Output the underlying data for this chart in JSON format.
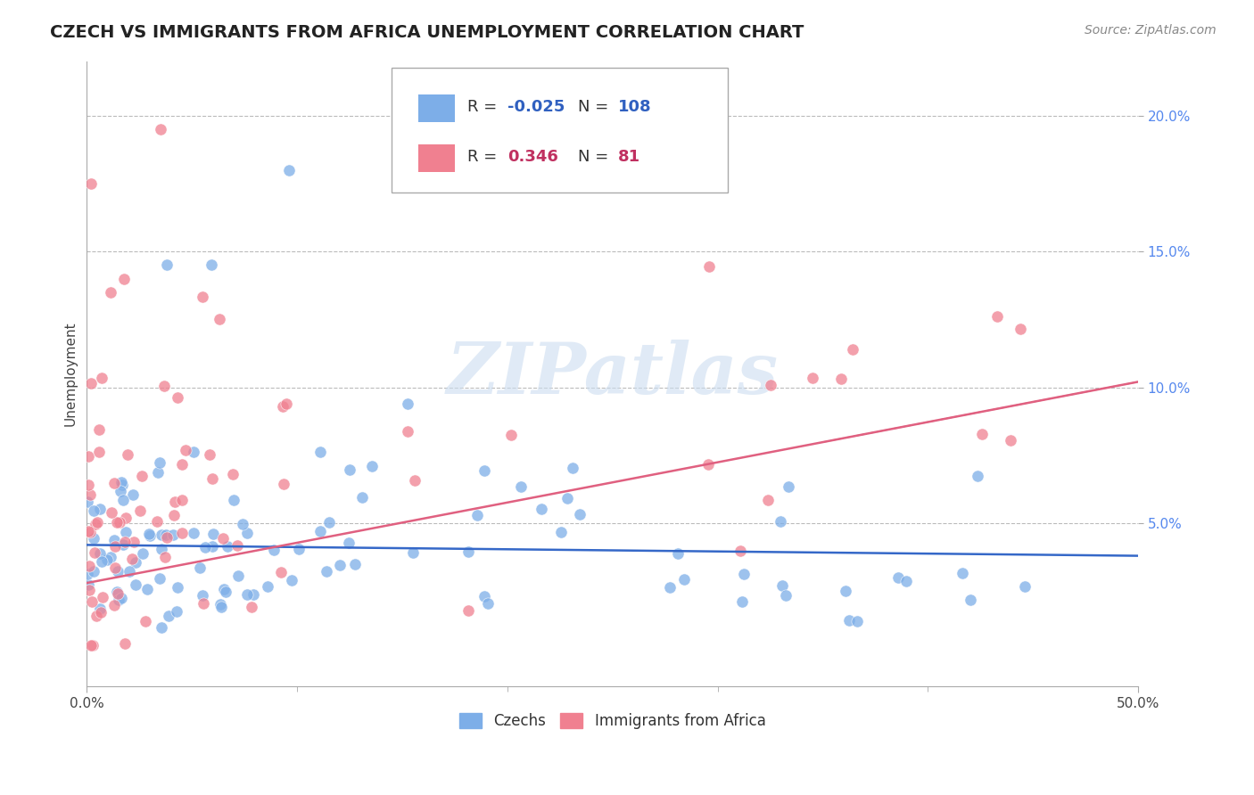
{
  "title": "CZECH VS IMMIGRANTS FROM AFRICA UNEMPLOYMENT CORRELATION CHART",
  "source_text": "Source: ZipAtlas.com",
  "ylabel": "Unemployment",
  "xlim": [
    0,
    0.5
  ],
  "ylim": [
    -0.01,
    0.22
  ],
  "xtick_labeled": [
    0.0,
    0.5
  ],
  "xticklabels": [
    "0.0%",
    "50.0%"
  ],
  "xtick_minor": [
    0.1,
    0.2,
    0.3,
    0.4
  ],
  "yticks": [
    0.05,
    0.1,
    0.15,
    0.2
  ],
  "yticklabels": [
    "5.0%",
    "10.0%",
    "15.0%",
    "20.0%"
  ],
  "czech_color": "#7daee8",
  "africa_color": "#f08090",
  "czech_R": -0.025,
  "czech_N": 108,
  "africa_R": 0.346,
  "africa_N": 81,
  "watermark": "ZIPatlas",
  "watermark_color": "#ccddf0",
  "legend_R_color_czech": "#3060c0",
  "legend_R_color_africa": "#c03060",
  "background_color": "#ffffff",
  "grid_color": "#bbbbbb",
  "title_fontsize": 14,
  "axis_label_fontsize": 11,
  "tick_fontsize": 11,
  "legend_fontsize": 13
}
